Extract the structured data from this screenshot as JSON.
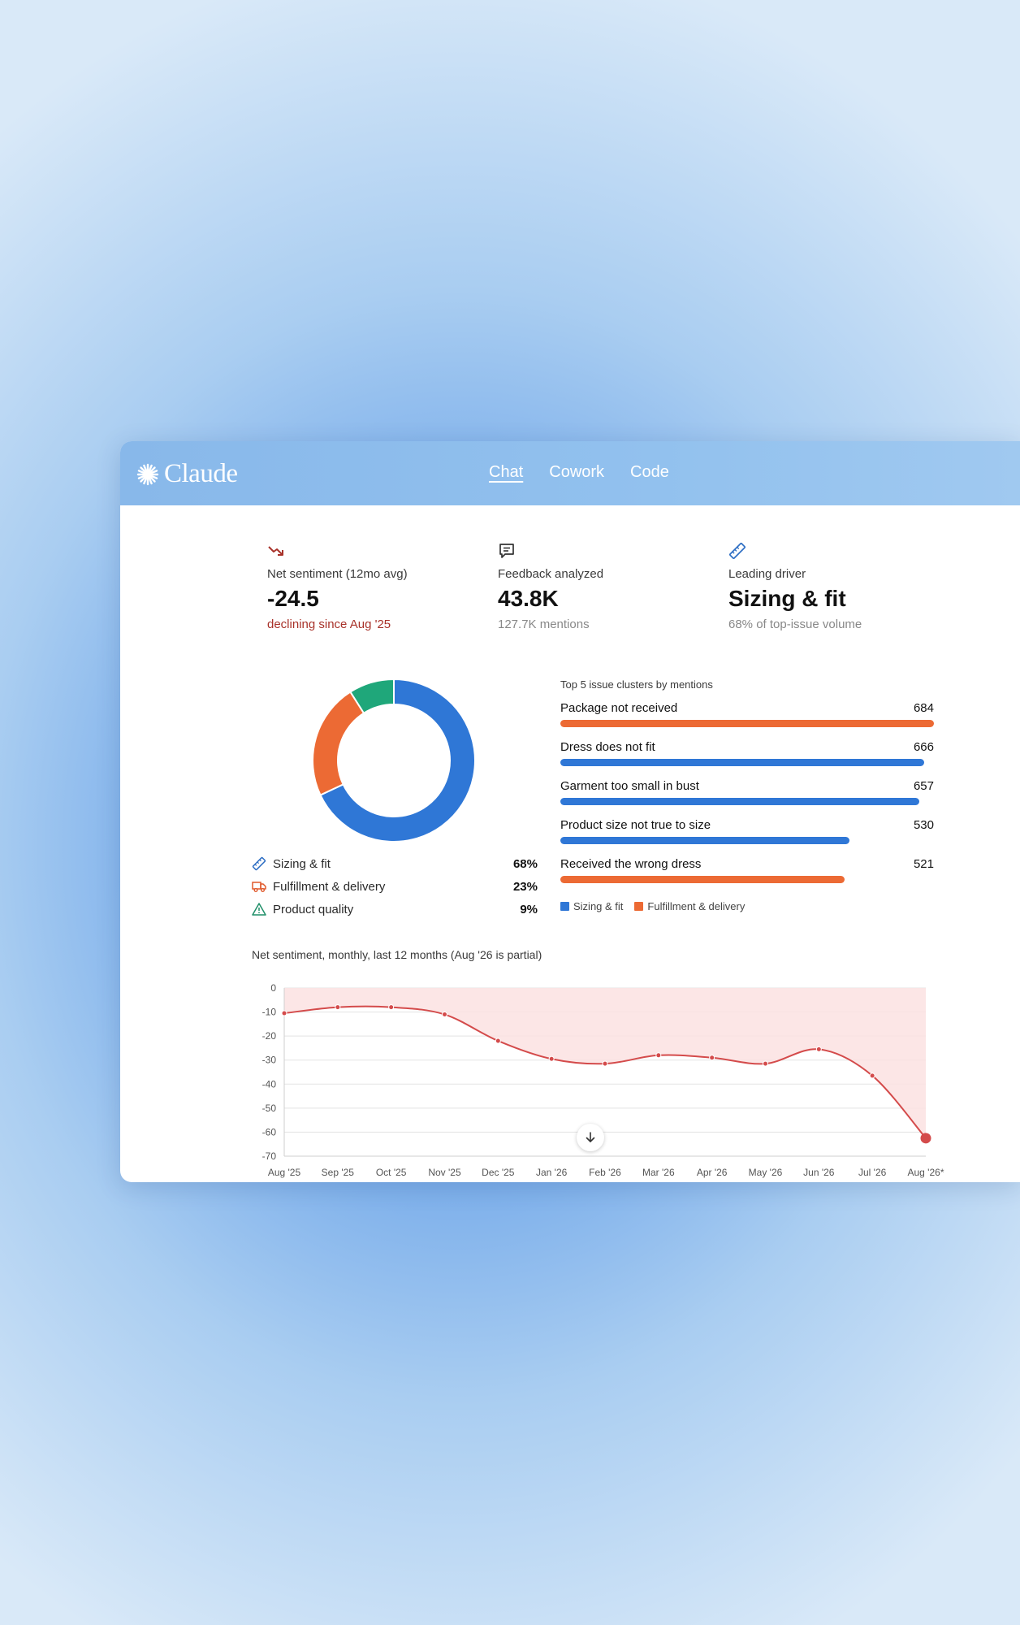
{
  "app": {
    "logo_text": "Claude",
    "tabs": [
      {
        "label": "Chat",
        "active": true
      },
      {
        "label": "Cowork",
        "active": false
      },
      {
        "label": "Code",
        "active": false
      }
    ]
  },
  "kpis": [
    {
      "icon": "trend-down-icon",
      "label": "Net sentiment (12mo avg)",
      "value": "-24.5",
      "sub": "declining since Aug '25",
      "sub_color": "#a8322a"
    },
    {
      "icon": "message-icon",
      "label": "Feedback analyzed",
      "value": "43.8K",
      "sub": "127.7K mentions"
    },
    {
      "icon": "ruler-icon",
      "label": "Leading driver",
      "value": "Sizing & fit",
      "sub": "68% of top-issue volume"
    }
  ],
  "colors": {
    "blue": "#2f77d6",
    "orange": "#ec6a34",
    "green": "#1fa77a",
    "red": "#d44b4b"
  },
  "chart_data": [
    {
      "type": "pie",
      "variant": "donut",
      "categories": [
        "Sizing & fit",
        "Fulfillment & delivery",
        "Product quality"
      ],
      "values": [
        68,
        23,
        9
      ],
      "labels": [
        "68%",
        "23%",
        "9%"
      ],
      "icons": [
        "ruler-icon",
        "truck-icon",
        "warning-icon"
      ],
      "colors": [
        "#2f77d6",
        "#ec6a34",
        "#1fa77a"
      ]
    },
    {
      "type": "bar",
      "orientation": "horizontal",
      "title": "Top 5 issue clusters by mentions",
      "categories": [
        "Package not received",
        "Dress does not fit",
        "Garment too small in bust",
        "Product size not true to size",
        "Received the wrong dress"
      ],
      "values": [
        684,
        666,
        657,
        530,
        521
      ],
      "groups": [
        "Fulfillment & delivery",
        "Sizing & fit",
        "Sizing & fit",
        "Sizing & fit",
        "Fulfillment & delivery"
      ],
      "legend": [
        {
          "name": "Sizing & fit",
          "color": "#2f77d6"
        },
        {
          "name": "Fulfillment & delivery",
          "color": "#ec6a34"
        }
      ]
    },
    {
      "type": "area",
      "title": "Net sentiment, monthly, last 12 months (Aug '26 is partial)",
      "x": [
        "Aug '25",
        "Sep '25",
        "Oct '25",
        "Nov '25",
        "Dec '25",
        "Jan '26",
        "Feb '26",
        "Mar '26",
        "Apr '26",
        "May '26",
        "Jun '26",
        "Jul '26",
        "Aug '26*"
      ],
      "values": [
        -10.5,
        -8,
        -8,
        -11,
        -22,
        -29.5,
        -31.5,
        -28,
        -29,
        -31.5,
        -25.5,
        -36.5,
        -62.5
      ],
      "ylim": [
        -70,
        0
      ],
      "yticks": [
        0,
        -10,
        -20,
        -30,
        -40,
        -50,
        -60,
        -70
      ],
      "grid": true,
      "color": "#d44b4b"
    }
  ]
}
